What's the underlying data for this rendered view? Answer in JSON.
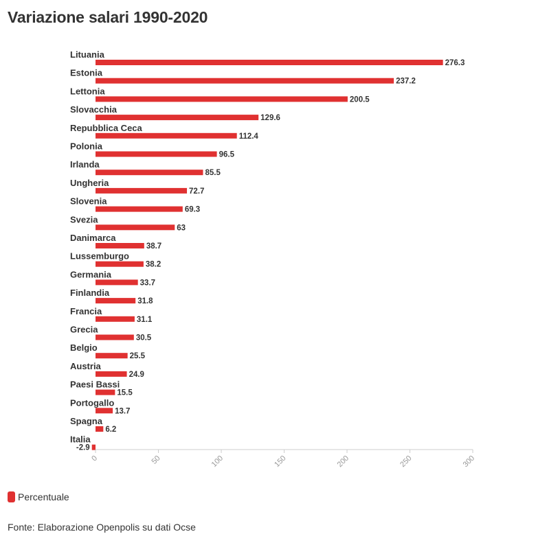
{
  "header": {
    "title": "Variazione salari 1990-2020"
  },
  "colors": {
    "bar": "#e03131",
    "axis": "#cccccc",
    "label": "#333333",
    "tick": "#999999"
  },
  "legend": {
    "label": "Percentuale"
  },
  "footer": {
    "source": "Fonte: Elaborazione Openpolis su dati Ocse"
  },
  "chart_data": {
    "type": "bar",
    "orientation": "horizontal",
    "title": "Variazione salari 1990-2020",
    "xlabel": "",
    "ylabel": "",
    "xlim": [
      0,
      300
    ],
    "xticks": [
      0,
      50,
      100,
      150,
      200,
      250,
      300
    ],
    "grid": false,
    "legend_position": "bottom-left",
    "categories": [
      "Lituania",
      "Estonia",
      "Lettonia",
      "Slovacchia",
      "Repubblica Ceca",
      "Polonia",
      "Irlanda",
      "Ungheria",
      "Slovenia",
      "Svezia",
      "Danimarca",
      "Lussemburgo",
      "Germania",
      "Finlandia",
      "Francia",
      "Grecia",
      "Belgio",
      "Austria",
      "Paesi Bassi",
      "Portogallo",
      "Spagna",
      "Italia"
    ],
    "series": [
      {
        "name": "Percentuale",
        "values": [
          276.3,
          237.2,
          200.5,
          129.6,
          112.4,
          96.5,
          85.5,
          72.7,
          69.3,
          63,
          38.7,
          38.2,
          33.7,
          31.8,
          31.1,
          30.5,
          25.5,
          24.9,
          15.5,
          13.7,
          6.2,
          -2.9
        ]
      }
    ]
  }
}
